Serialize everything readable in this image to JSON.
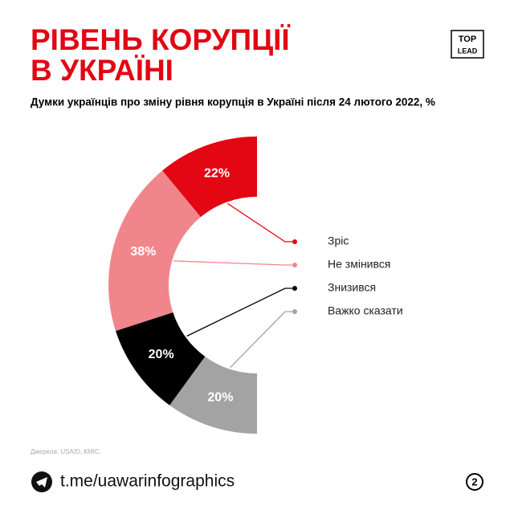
{
  "header": {
    "title": [
      "РІВЕНЬ КОРУПЦІЇ",
      "В УКРАЇНІ"
    ],
    "logo": [
      "TOP",
      "LEAD"
    ]
  },
  "chart_data": {
    "type": "half-donut",
    "subtitle": "Думки українців про зміну рівня корупція в Україні після 24 лютого 2022, %",
    "categories": [
      "Зріс",
      "Не змінився",
      "Знизився",
      "Важко сказати"
    ],
    "values": [
      22,
      38,
      20,
      20
    ],
    "value_labels": [
      "22%",
      "38%",
      "20%",
      "20%"
    ],
    "colors": [
      "#e30613",
      "#f0868c",
      "#000000",
      "#a3a3a3"
    ]
  },
  "footer": {
    "source": "Джерела: USAID, КМІС.",
    "link": "t.me/uawarinfographics",
    "page": "2"
  }
}
